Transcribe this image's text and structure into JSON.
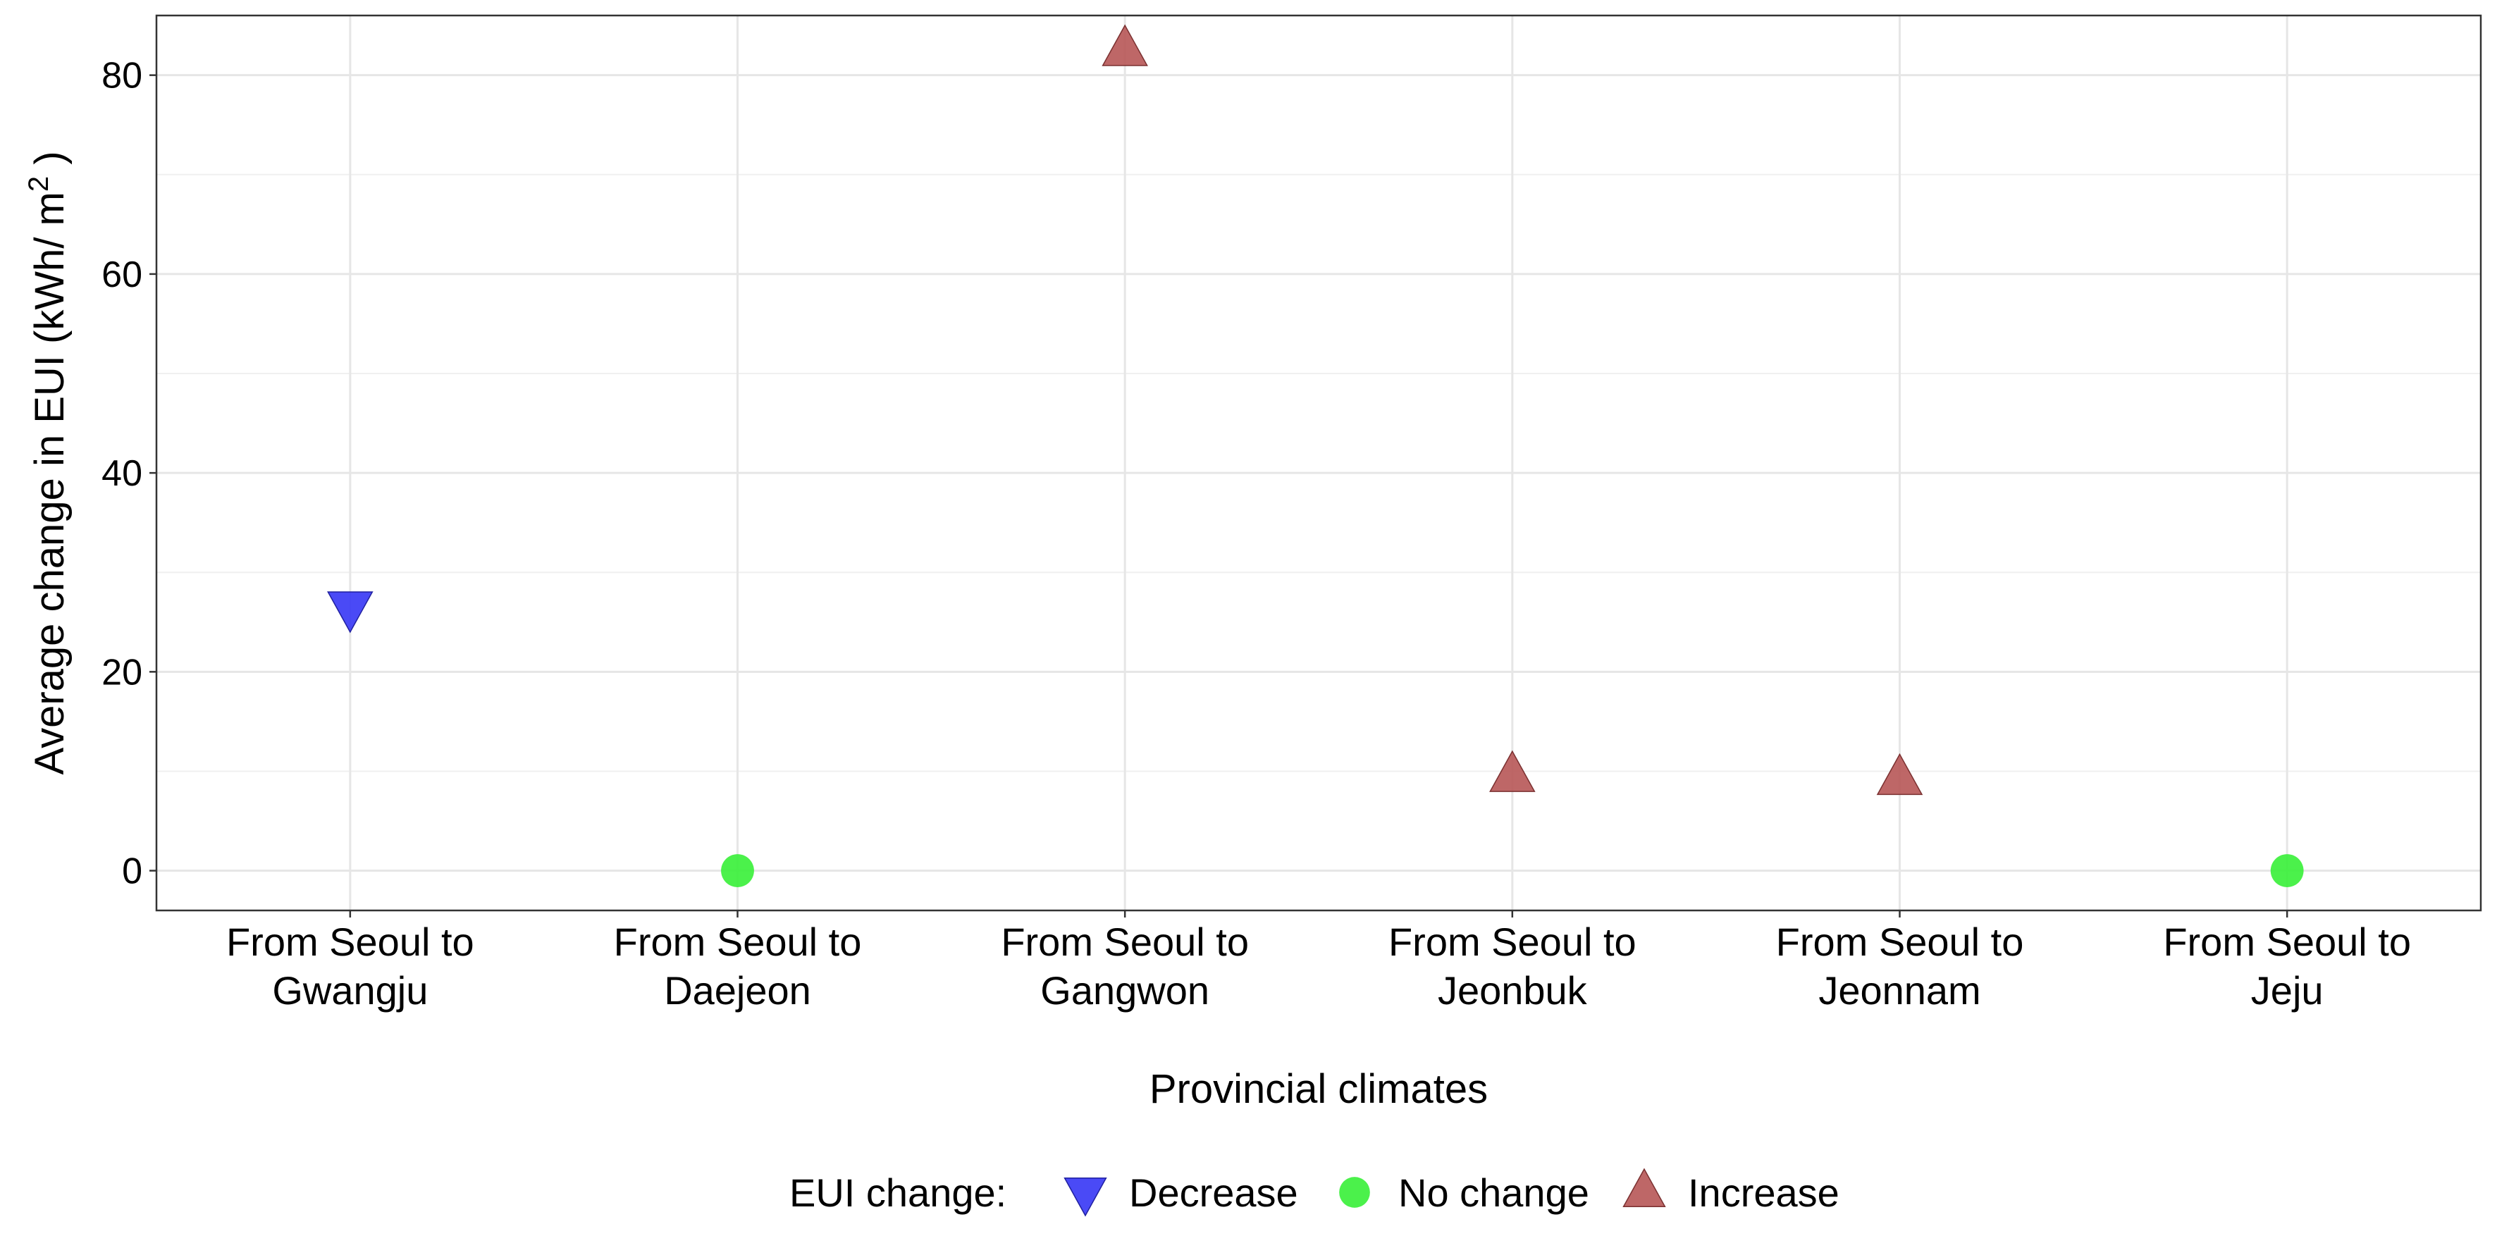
{
  "chart_data": {
    "type": "scatter",
    "xlabel": "Provincial climates",
    "ylabel": "Average change in EUI (kWh/ m",
    "ylabel_superscript": "2",
    "ylabel_suffix": " )",
    "ylim": [
      -4,
      86
    ],
    "yticks": [
      0,
      20,
      40,
      60,
      80
    ],
    "grid": true,
    "legend_position": "bottom",
    "categories": [
      {
        "line1": "From Seoul to",
        "line2": "Gwangju"
      },
      {
        "line1": "From Seoul to",
        "line2": "Daejeon"
      },
      {
        "line1": "From Seoul to",
        "line2": "Gangwon"
      },
      {
        "line1": "From Seoul to",
        "line2": "Jeonbuk"
      },
      {
        "line1": "From Seoul to",
        "line2": "Jeonnam"
      },
      {
        "line1": "From Seoul to",
        "line2": "Jeju"
      }
    ],
    "points": [
      {
        "category_index": 0,
        "y": 26.5,
        "group": "Decrease"
      },
      {
        "category_index": 1,
        "y": 0,
        "group": "No change"
      },
      {
        "category_index": 2,
        "y": 82.5,
        "group": "Increase"
      },
      {
        "category_index": 3,
        "y": 9.5,
        "group": "Increase"
      },
      {
        "category_index": 4,
        "y": 9.2,
        "group": "Increase"
      },
      {
        "category_index": 5,
        "y": 0,
        "group": "No change"
      }
    ],
    "legend": {
      "title": "EUI change:",
      "items": [
        {
          "label": "Decrease",
          "shape": "triangle-down",
          "color": "#3B3BF5"
        },
        {
          "label": "No change",
          "shape": "circle",
          "color": "#3CF03C"
        },
        {
          "label": "Increase",
          "shape": "triangle-up",
          "color": "#B85A5A"
        }
      ]
    }
  }
}
